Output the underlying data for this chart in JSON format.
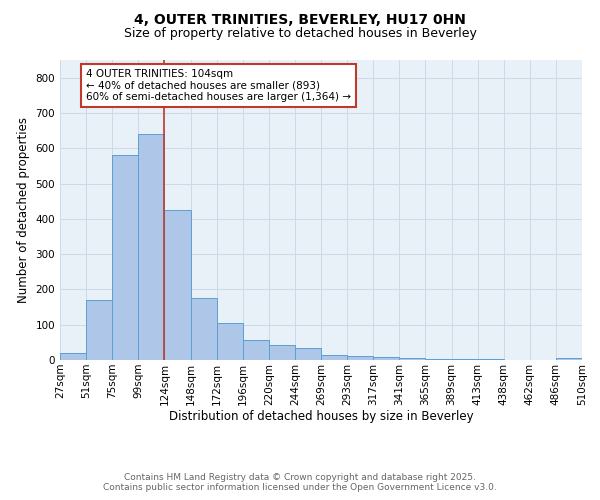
{
  "title_line1": "4, OUTER TRINITIES, BEVERLEY, HU17 0HN",
  "title_line2": "Size of property relative to detached houses in Beverley",
  "xlabel": "Distribution of detached houses by size in Beverley",
  "ylabel": "Number of detached properties",
  "bar_values": [
    20,
    170,
    580,
    640,
    425,
    175,
    105,
    57,
    42,
    33,
    15,
    10,
    8,
    5,
    4,
    3,
    2,
    1,
    1,
    5
  ],
  "bin_labels": [
    "27sqm",
    "51sqm",
    "75sqm",
    "99sqm",
    "124sqm",
    "148sqm",
    "172sqm",
    "196sqm",
    "220sqm",
    "244sqm",
    "269sqm",
    "293sqm",
    "317sqm",
    "341sqm",
    "365sqm",
    "389sqm",
    "413sqm",
    "438sqm",
    "462sqm",
    "486sqm",
    "510sqm"
  ],
  "bar_color": "#aec6e8",
  "bar_edge_color": "#5a9fd4",
  "grid_color": "#ccd9e8",
  "bg_color": "#e8f0f8",
  "vline_color": "#c0392b",
  "vline_x_index": 3.5,
  "annotation_text": "4 OUTER TRINITIES: 104sqm\n← 40% of detached houses are smaller (893)\n60% of semi-detached houses are larger (1,364) →",
  "annotation_box_color": "#c0392b",
  "ylim": [
    0,
    850
  ],
  "yticks": [
    0,
    100,
    200,
    300,
    400,
    500,
    600,
    700,
    800
  ],
  "footer_line1": "Contains HM Land Registry data © Crown copyright and database right 2025.",
  "footer_line2": "Contains public sector information licensed under the Open Government Licence v3.0.",
  "title_fontsize": 10,
  "subtitle_fontsize": 9,
  "axis_label_fontsize": 8.5,
  "tick_fontsize": 7.5,
  "annotation_fontsize": 7.5,
  "footer_fontsize": 6.5
}
